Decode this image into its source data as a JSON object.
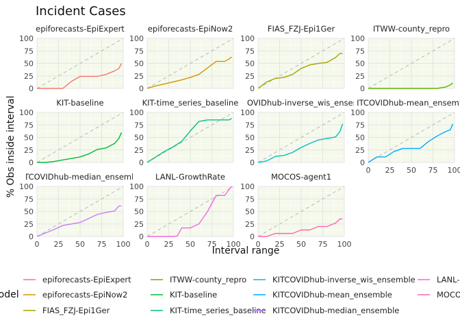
{
  "chart_data": {
    "type": "line",
    "title": "Incident Cases",
    "xlabel": "Interval range",
    "ylabel": "% Obs inside interval",
    "legend_title": "model",
    "legend_placement": "bottom",
    "xlim": [
      0,
      100
    ],
    "ylim": [
      0,
      100
    ],
    "x_ticks": [
      0,
      25,
      50,
      75,
      100
    ],
    "y_ticks": [
      0,
      25,
      50,
      75,
      100
    ],
    "grid": true,
    "panel_background": "#f5f9ec",
    "reference_line": {
      "x": [
        0,
        100
      ],
      "y": [
        0,
        100
      ],
      "style": "dashed",
      "color": "#bdbdbd"
    },
    "panels": [
      {
        "title": "epiforecasts-EpiExpert",
        "color": "#F8766D",
        "x": [
          0,
          10,
          20,
          30,
          40,
          50,
          60,
          70,
          80,
          90,
          95,
          98
        ],
        "y": [
          0,
          0,
          0,
          0,
          14,
          24,
          24,
          24,
          28,
          35,
          40,
          50
        ]
      },
      {
        "title": "epiforecasts-EpiNow2",
        "color": "#D89000",
        "x": [
          0,
          10,
          20,
          30,
          40,
          50,
          60,
          70,
          80,
          90,
          95,
          98
        ],
        "y": [
          0,
          5,
          9,
          13,
          17,
          22,
          28,
          41,
          54,
          54,
          59,
          63
        ]
      },
      {
        "title": "FIAS_FZJ-Epi1Ger",
        "color": "#A3A500",
        "x": [
          0,
          10,
          20,
          30,
          40,
          50,
          60,
          70,
          80,
          90,
          95,
          98
        ],
        "y": [
          0,
          13,
          20,
          22,
          28,
          40,
          47,
          50,
          52,
          62,
          70,
          70
        ]
      },
      {
        "title": "ITWW-county_repro",
        "color": "#5BB300",
        "x": [
          0,
          10,
          20,
          30,
          40,
          50,
          60,
          70,
          80,
          90,
          95,
          98
        ],
        "y": [
          0,
          0,
          0,
          0,
          0,
          0,
          0,
          0,
          0,
          3,
          7,
          11
        ]
      },
      {
        "title": "KIT-baseline",
        "color": "#00BA38",
        "x": [
          0,
          10,
          20,
          30,
          40,
          50,
          60,
          70,
          80,
          90,
          95,
          98
        ],
        "y": [
          0,
          0,
          2,
          5,
          8,
          11,
          17,
          26,
          29,
          38,
          48,
          60
        ]
      },
      {
        "title": "KIT-time_series_baseline",
        "color": "#00BF7D",
        "x": [
          0,
          10,
          20,
          30,
          40,
          50,
          60,
          70,
          80,
          90,
          95,
          98
        ],
        "y": [
          0,
          11,
          22,
          31,
          42,
          63,
          82,
          85,
          85,
          85,
          85,
          88
        ]
      },
      {
        "title": "KITCOVIDhub-inverse_wis_ensemble",
        "color": "#00BFC4",
        "x": [
          0,
          10,
          20,
          30,
          40,
          50,
          60,
          70,
          80,
          90,
          95,
          98
        ],
        "y": [
          0,
          3,
          12,
          14,
          20,
          30,
          38,
          45,
          48,
          51,
          62,
          77
        ]
      },
      {
        "title": "KITCOVIDhub-mean_ensemble",
        "color": "#00A9FF",
        "x": [
          0,
          10,
          20,
          30,
          40,
          50,
          60,
          70,
          80,
          90,
          95,
          98
        ],
        "y": [
          0,
          11,
          11,
          22,
          28,
          28,
          28,
          42,
          53,
          62,
          65,
          77
        ]
      },
      {
        "title": "KITCOVIDhub-median_ensemble",
        "color": "#C77CFF",
        "x": [
          0,
          10,
          20,
          30,
          40,
          50,
          60,
          70,
          80,
          90,
          95,
          98
        ],
        "y": [
          0,
          7,
          14,
          22,
          25,
          28,
          36,
          44,
          48,
          51,
          61,
          61
        ]
      },
      {
        "title": "LANL-GrowthRate",
        "color": "#F564E3",
        "x": [
          0,
          10,
          20,
          30,
          35,
          40,
          50,
          60,
          70,
          80,
          90,
          95,
          98
        ],
        "y": [
          0,
          0,
          0,
          0,
          1,
          17,
          17,
          25,
          50,
          82,
          82,
          94,
          100
        ]
      },
      {
        "title": "MOCOS-agent1",
        "color": "#FF64B0",
        "x": [
          0,
          10,
          20,
          30,
          40,
          50,
          60,
          70,
          80,
          90,
          95,
          98
        ],
        "y": [
          0,
          0,
          6,
          6,
          6,
          13,
          13,
          20,
          20,
          27,
          35,
          35
        ]
      }
    ]
  }
}
